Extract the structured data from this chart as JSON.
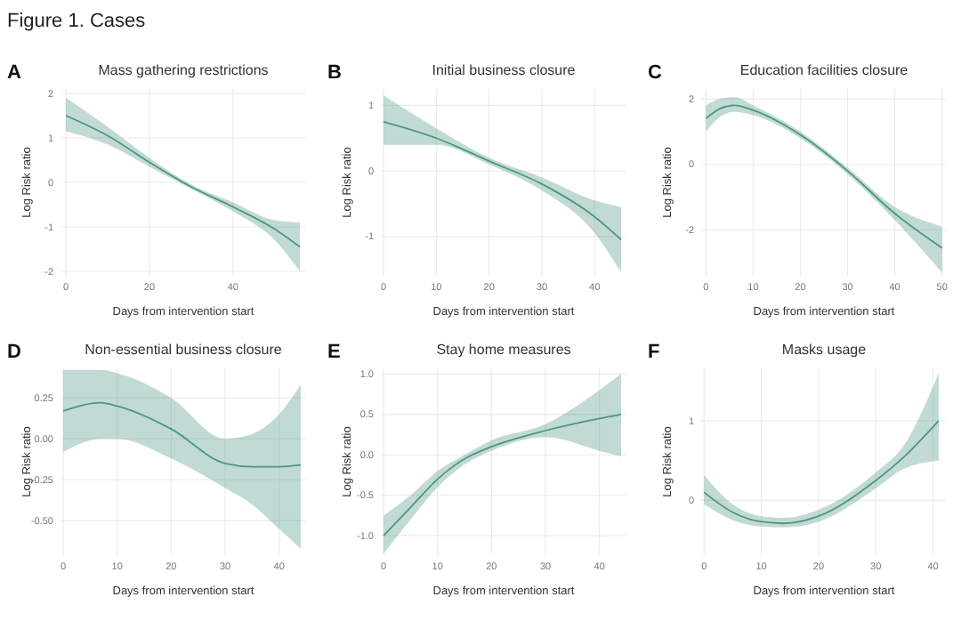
{
  "chart_data": [
    {
      "type": "line",
      "title": "Mass gathering restrictions",
      "xlabel": "Days from intervention start",
      "ylabel": "Log Risk ratio",
      "annotations": [
        "Figure 1. Cases",
        "A"
      ],
      "grid": true,
      "xlim": [
        -1.3,
        57.5
      ],
      "ylim": [
        -2.1,
        2.1
      ],
      "xticks": [
        0,
        20,
        40
      ],
      "yticks": [
        -2,
        -1,
        0,
        1,
        2
      ],
      "x": [
        0,
        10,
        20,
        30,
        40,
        50,
        56
      ],
      "series": [
        {
          "color": "#4e9683",
          "values": [
            1.5,
            1.05,
            0.45,
            -0.1,
            -0.55,
            -1.05,
            -1.45
          ],
          "lower": [
            1.15,
            0.85,
            0.35,
            -0.15,
            -0.65,
            -1.3,
            -2.0
          ],
          "upper": [
            1.9,
            1.25,
            0.55,
            -0.05,
            -0.45,
            -0.85,
            -0.9
          ]
        }
      ]
    },
    {
      "type": "line",
      "title": "Initial business closure",
      "xlabel": "Days from intervention start",
      "ylabel": "Log Risk ratio",
      "annotations": [
        "B"
      ],
      "grid": true,
      "xlim": [
        -0.5,
        46
      ],
      "ylim": [
        -1.6,
        1.25
      ],
      "xticks": [
        0,
        10,
        20,
        30,
        40
      ],
      "yticks": [
        -1,
        0,
        1
      ],
      "x": [
        0,
        10,
        20,
        30,
        40,
        45
      ],
      "series": [
        {
          "color": "#4e9683",
          "values": [
            0.75,
            0.5,
            0.15,
            -0.2,
            -0.7,
            -1.05
          ],
          "lower": [
            0.4,
            0.4,
            0.1,
            -0.3,
            -0.95,
            -1.55
          ],
          "upper": [
            1.15,
            0.65,
            0.2,
            -0.1,
            -0.45,
            -0.55
          ]
        }
      ]
    },
    {
      "type": "line",
      "title": "Education facilities closure",
      "xlabel": "Days from intervention start",
      "ylabel": "Log Risk ratio",
      "annotations": [
        "C"
      ],
      "grid": true,
      "xlim": [
        -1,
        51
      ],
      "ylim": [
        -3.4,
        2.3
      ],
      "xticks": [
        0,
        10,
        20,
        30,
        40,
        50
      ],
      "yticks": [
        -2,
        0,
        2
      ],
      "x": [
        0,
        3,
        6,
        10,
        20,
        30,
        40,
        50
      ],
      "series": [
        {
          "color": "#4e9683",
          "values": [
            1.4,
            1.7,
            1.8,
            1.65,
            0.9,
            -0.2,
            -1.5,
            -2.55
          ],
          "lower": [
            1.0,
            1.45,
            1.6,
            1.5,
            0.8,
            -0.3,
            -1.7,
            -3.3
          ],
          "upper": [
            1.8,
            2.0,
            2.05,
            1.8,
            1.0,
            -0.1,
            -1.3,
            -1.9
          ]
        }
      ]
    },
    {
      "type": "line",
      "title": "Non-essential business closure",
      "xlabel": "Days from intervention start",
      "ylabel": "Log Risk ratio",
      "annotations": [
        "D"
      ],
      "grid": true,
      "xlim": [
        -0.5,
        45
      ],
      "ylim": [
        -0.71,
        0.43
      ],
      "xticks": [
        0,
        10,
        20,
        30,
        40
      ],
      "yticks": [
        {
          "value": -0.5,
          "label": "-0.50"
        },
        {
          "value": -0.25,
          "label": "-0.25"
        },
        {
          "value": 0,
          "label": "0.00"
        },
        {
          "value": 0.25,
          "label": "0.25"
        }
      ],
      "x": [
        0,
        7,
        10,
        20,
        30,
        35,
        40,
        44
      ],
      "series": [
        {
          "color": "#4e9683",
          "values": [
            0.17,
            0.22,
            0.2,
            0.06,
            -0.15,
            -0.17,
            -0.17,
            -0.16
          ],
          "lower": [
            -0.08,
            0.0,
            0.0,
            -0.12,
            -0.3,
            -0.4,
            -0.55,
            -0.67
          ],
          "upper": [
            0.42,
            0.42,
            0.4,
            0.25,
            0.0,
            0.03,
            0.15,
            0.33
          ]
        }
      ]
    },
    {
      "type": "line",
      "title": "Stay home measures",
      "xlabel": "Days from intervention start",
      "ylabel": "Log Risk ratio",
      "annotations": [
        "E"
      ],
      "grid": true,
      "xlim": [
        -0.5,
        45
      ],
      "ylim": [
        -1.24,
        1.07
      ],
      "xticks": [
        0,
        10,
        20,
        30,
        40
      ],
      "yticks": [
        {
          "value": -1,
          "label": "-1.0"
        },
        {
          "value": -0.5,
          "label": "-0.5"
        },
        {
          "value": 0,
          "label": "0.0"
        },
        0.5,
        {
          "value": 1,
          "label": "1.0"
        }
      ],
      "x": [
        0,
        5,
        10,
        15,
        20,
        30,
        40,
        44
      ],
      "series": [
        {
          "color": "#4e9683",
          "values": [
            -1.0,
            -0.65,
            -0.3,
            -0.05,
            0.1,
            0.3,
            0.45,
            0.5
          ],
          "lower": [
            -1.22,
            -0.8,
            -0.4,
            -0.12,
            0.05,
            0.22,
            0.05,
            -0.02
          ],
          "upper": [
            -0.75,
            -0.5,
            -0.2,
            0.0,
            0.18,
            0.38,
            0.8,
            1.0
          ]
        }
      ]
    },
    {
      "type": "line",
      "title": "Masks usage",
      "xlabel": "Days from intervention start",
      "ylabel": "Log Risk ratio",
      "annotations": [
        "F"
      ],
      "grid": true,
      "xlim": [
        -0.5,
        42.4
      ],
      "ylim": [
        -0.69,
        1.66
      ],
      "xticks": [
        0,
        10,
        20,
        30,
        40
      ],
      "yticks": [
        0,
        1
      ],
      "x": [
        0,
        5,
        10,
        14,
        20,
        30,
        35,
        41
      ],
      "series": [
        {
          "color": "#4e9683",
          "values": [
            0.1,
            -0.15,
            -0.27,
            -0.29,
            -0.2,
            0.25,
            0.55,
            1.0
          ],
          "lower": [
            -0.05,
            -0.25,
            -0.33,
            -0.34,
            -0.27,
            0.15,
            0.4,
            0.5
          ],
          "upper": [
            0.32,
            -0.05,
            -0.2,
            -0.22,
            -0.12,
            0.35,
            0.7,
            1.6
          ]
        }
      ]
    }
  ]
}
